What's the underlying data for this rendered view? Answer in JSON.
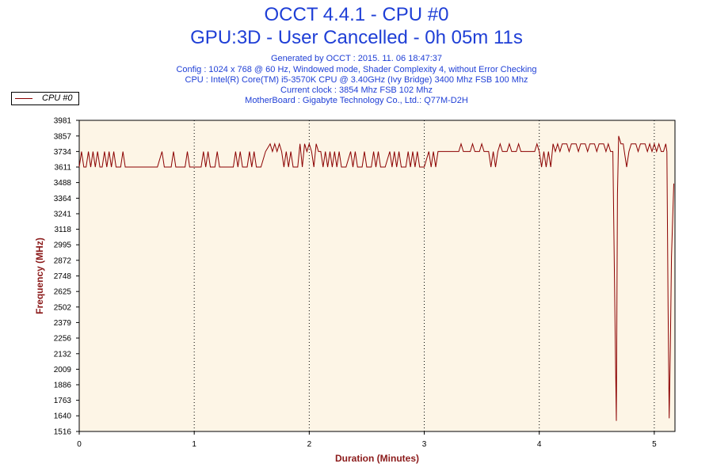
{
  "header": {
    "title": "OCCT 4.4.1 - CPU #0",
    "subtitle": "GPU:3D - User Cancelled - 0h 05m 11s",
    "info_lines": [
      "Generated by OCCT : 2015. 11. 06 18:47:37",
      "Config : 1024 x 768 @ 60 Hz, Windowed mode, Shader Complexity 4, without Error Checking",
      "CPU : Intel(R) Core(TM) i5-3570K CPU @ 3.40GHz (Ivy Bridge) 3400 Mhz FSB 100 Mhz",
      "Current clock : 3854 Mhz FSB 102 Mhz",
      "MotherBoard : Gigabyte Technology Co., Ltd.: Q77M-D2H"
    ]
  },
  "colors": {
    "series": "#8b0000",
    "plot_bg": "#fdf5e6",
    "title": "#1f3fd6",
    "axis_title": "#8b1a1a"
  },
  "chart_data": {
    "type": "line",
    "xlabel": "Duration (Minutes)",
    "ylabel": "Frequency (MHz)",
    "xlim": [
      0,
      5.18
    ],
    "ylim": [
      1516,
      3981
    ],
    "x_ticks": [
      "0",
      "1",
      "2",
      "3",
      "4",
      "5"
    ],
    "y_ticks": [
      "3981",
      "3857",
      "3734",
      "3611",
      "3488",
      "3364",
      "3241",
      "3118",
      "2995",
      "2872",
      "2748",
      "2625",
      "2502",
      "2379",
      "2256",
      "2132",
      "2009",
      "1886",
      "1763",
      "1640",
      "1516"
    ],
    "grid": "vertical dotted at each minute",
    "legend": {
      "position": "top-left",
      "entries": [
        "CPU #0"
      ]
    },
    "series": [
      {
        "name": "CPU #0",
        "points": [
          [
            0.0,
            3611
          ],
          [
            0.02,
            3734
          ],
          [
            0.04,
            3611
          ],
          [
            0.06,
            3611
          ],
          [
            0.08,
            3734
          ],
          [
            0.1,
            3611
          ],
          [
            0.12,
            3734
          ],
          [
            0.14,
            3611
          ],
          [
            0.16,
            3734
          ],
          [
            0.18,
            3611
          ],
          [
            0.2,
            3611
          ],
          [
            0.22,
            3734
          ],
          [
            0.24,
            3611
          ],
          [
            0.26,
            3734
          ],
          [
            0.28,
            3611
          ],
          [
            0.3,
            3734
          ],
          [
            0.32,
            3611
          ],
          [
            0.34,
            3611
          ],
          [
            0.36,
            3611
          ],
          [
            0.38,
            3734
          ],
          [
            0.4,
            3611
          ],
          [
            0.5,
            3611
          ],
          [
            0.6,
            3611
          ],
          [
            0.68,
            3611
          ],
          [
            0.72,
            3734
          ],
          [
            0.74,
            3611
          ],
          [
            0.8,
            3611
          ],
          [
            0.82,
            3734
          ],
          [
            0.84,
            3611
          ],
          [
            0.92,
            3611
          ],
          [
            0.94,
            3734
          ],
          [
            0.96,
            3611
          ],
          [
            1.0,
            3611
          ],
          [
            1.06,
            3611
          ],
          [
            1.08,
            3734
          ],
          [
            1.1,
            3611
          ],
          [
            1.12,
            3734
          ],
          [
            1.14,
            3611
          ],
          [
            1.18,
            3611
          ],
          [
            1.2,
            3734
          ],
          [
            1.22,
            3611
          ],
          [
            1.3,
            3611
          ],
          [
            1.34,
            3611
          ],
          [
            1.36,
            3734
          ],
          [
            1.38,
            3611
          ],
          [
            1.4,
            3734
          ],
          [
            1.42,
            3611
          ],
          [
            1.46,
            3611
          ],
          [
            1.48,
            3734
          ],
          [
            1.5,
            3611
          ],
          [
            1.52,
            3734
          ],
          [
            1.54,
            3611
          ],
          [
            1.56,
            3611
          ],
          [
            1.58,
            3611
          ],
          [
            1.62,
            3734
          ],
          [
            1.66,
            3795
          ],
          [
            1.68,
            3734
          ],
          [
            1.7,
            3795
          ],
          [
            1.72,
            3734
          ],
          [
            1.74,
            3795
          ],
          [
            1.76,
            3734
          ],
          [
            1.78,
            3611
          ],
          [
            1.8,
            3734
          ],
          [
            1.82,
            3611
          ],
          [
            1.84,
            3734
          ],
          [
            1.86,
            3611
          ],
          [
            1.9,
            3611
          ],
          [
            1.92,
            3795
          ],
          [
            1.94,
            3611
          ],
          [
            1.96,
            3795
          ],
          [
            1.98,
            3734
          ],
          [
            2.0,
            3795
          ],
          [
            2.02,
            3734
          ],
          [
            2.04,
            3611
          ],
          [
            2.06,
            3795
          ],
          [
            2.08,
            3734
          ],
          [
            2.1,
            3734
          ],
          [
            2.12,
            3611
          ],
          [
            2.14,
            3734
          ],
          [
            2.16,
            3611
          ],
          [
            2.18,
            3734
          ],
          [
            2.2,
            3611
          ],
          [
            2.22,
            3734
          ],
          [
            2.24,
            3611
          ],
          [
            2.26,
            3734
          ],
          [
            2.28,
            3611
          ],
          [
            2.32,
            3611
          ],
          [
            2.36,
            3734
          ],
          [
            2.38,
            3611
          ],
          [
            2.4,
            3734
          ],
          [
            2.42,
            3611
          ],
          [
            2.46,
            3611
          ],
          [
            2.48,
            3734
          ],
          [
            2.5,
            3611
          ],
          [
            2.54,
            3611
          ],
          [
            2.56,
            3734
          ],
          [
            2.58,
            3611
          ],
          [
            2.6,
            3734
          ],
          [
            2.62,
            3611
          ],
          [
            2.66,
            3611
          ],
          [
            2.7,
            3734
          ],
          [
            2.72,
            3611
          ],
          [
            2.74,
            3734
          ],
          [
            2.76,
            3611
          ],
          [
            2.78,
            3734
          ],
          [
            2.8,
            3611
          ],
          [
            2.84,
            3611
          ],
          [
            2.86,
            3734
          ],
          [
            2.88,
            3611
          ],
          [
            2.9,
            3734
          ],
          [
            2.92,
            3611
          ],
          [
            2.94,
            3734
          ],
          [
            2.96,
            3611
          ],
          [
            3.0,
            3611
          ],
          [
            3.04,
            3734
          ],
          [
            3.06,
            3611
          ],
          [
            3.08,
            3734
          ],
          [
            3.1,
            3611
          ],
          [
            3.12,
            3734
          ],
          [
            3.14,
            3734
          ],
          [
            3.3,
            3734
          ],
          [
            3.32,
            3795
          ],
          [
            3.34,
            3734
          ],
          [
            3.4,
            3734
          ],
          [
            3.42,
            3795
          ],
          [
            3.44,
            3734
          ],
          [
            3.48,
            3734
          ],
          [
            3.5,
            3795
          ],
          [
            3.52,
            3734
          ],
          [
            3.56,
            3734
          ],
          [
            3.58,
            3611
          ],
          [
            3.6,
            3734
          ],
          [
            3.62,
            3611
          ],
          [
            3.64,
            3734
          ],
          [
            3.66,
            3795
          ],
          [
            3.68,
            3734
          ],
          [
            3.72,
            3734
          ],
          [
            3.74,
            3795
          ],
          [
            3.76,
            3734
          ],
          [
            3.8,
            3734
          ],
          [
            3.82,
            3795
          ],
          [
            3.84,
            3734
          ],
          [
            3.96,
            3734
          ],
          [
            3.98,
            3795
          ],
          [
            4.0,
            3734
          ],
          [
            4.02,
            3611
          ],
          [
            4.04,
            3734
          ],
          [
            4.06,
            3611
          ],
          [
            4.08,
            3734
          ],
          [
            4.1,
            3611
          ],
          [
            4.12,
            3795
          ],
          [
            4.14,
            3734
          ],
          [
            4.16,
            3795
          ],
          [
            4.18,
            3734
          ],
          [
            4.2,
            3795
          ],
          [
            4.24,
            3795
          ],
          [
            4.26,
            3734
          ],
          [
            4.28,
            3795
          ],
          [
            4.32,
            3795
          ],
          [
            4.34,
            3734
          ],
          [
            4.36,
            3795
          ],
          [
            4.4,
            3795
          ],
          [
            4.42,
            3734
          ],
          [
            4.44,
            3795
          ],
          [
            4.48,
            3795
          ],
          [
            4.5,
            3734
          ],
          [
            4.52,
            3795
          ],
          [
            4.56,
            3795
          ],
          [
            4.58,
            3734
          ],
          [
            4.6,
            3795
          ],
          [
            4.62,
            3734
          ],
          [
            4.64,
            3734
          ],
          [
            4.66,
            2300
          ],
          [
            4.67,
            1600
          ],
          [
            4.68,
            3400
          ],
          [
            4.69,
            3857
          ],
          [
            4.71,
            3795
          ],
          [
            4.73,
            3795
          ],
          [
            4.74,
            3734
          ],
          [
            4.76,
            3611
          ],
          [
            4.78,
            3734
          ],
          [
            4.8,
            3795
          ],
          [
            4.84,
            3795
          ],
          [
            4.86,
            3734
          ],
          [
            4.88,
            3795
          ],
          [
            4.92,
            3795
          ],
          [
            4.94,
            3734
          ],
          [
            4.96,
            3795
          ],
          [
            4.98,
            3734
          ],
          [
            5.0,
            3795
          ],
          [
            5.02,
            3734
          ],
          [
            5.04,
            3795
          ],
          [
            5.06,
            3734
          ],
          [
            5.08,
            3734
          ],
          [
            5.1,
            3795
          ],
          [
            5.11,
            3734
          ],
          [
            5.12,
            2500
          ],
          [
            5.13,
            1620
          ],
          [
            5.14,
            2200
          ],
          [
            5.15,
            2900
          ],
          [
            5.16,
            3200
          ],
          [
            5.17,
            3480
          ]
        ]
      }
    ]
  }
}
